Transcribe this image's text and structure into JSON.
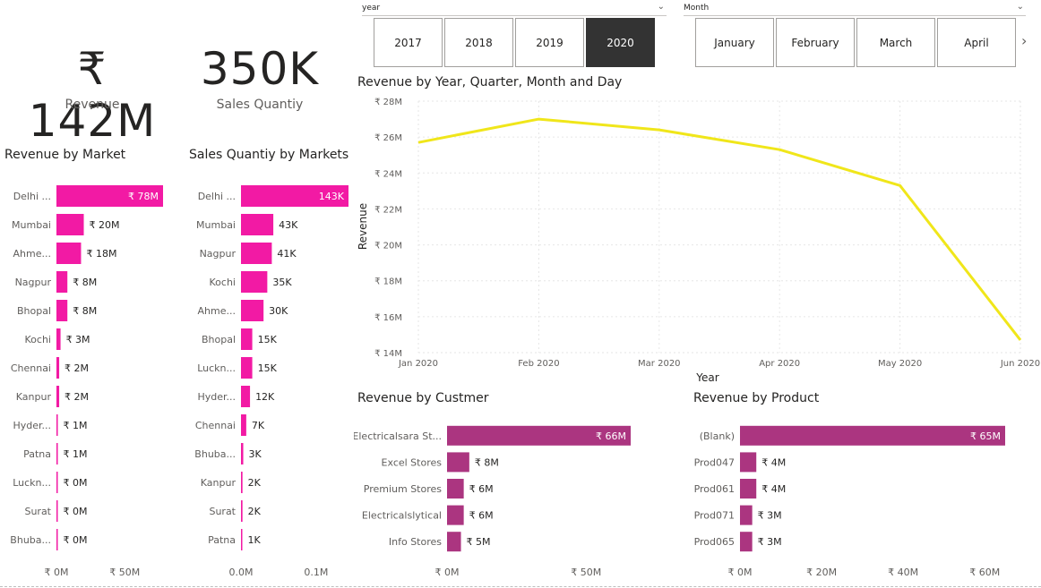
{
  "kpis": [
    {
      "value": "₹ 142M",
      "label": "Revenue"
    },
    {
      "value": "350K",
      "label": "Sales Quantiy"
    }
  ],
  "slicers": {
    "year": {
      "header": "year",
      "options": [
        "2017",
        "2018",
        "2019",
        "2020"
      ],
      "selected": "2020"
    },
    "month": {
      "header": "Month",
      "options": [
        "January",
        "February",
        "March",
        "April"
      ],
      "next_icon": "chevron-right-icon"
    }
  },
  "colors": {
    "market_bar": "#f21aa4",
    "customer_bar": "#ab3580",
    "line": "#f0e61a",
    "label_inside": "#ffffff",
    "axis_text": "#605e5c"
  },
  "chart_data": [
    {
      "type": "bar",
      "orientation": "horizontal",
      "title": "Revenue by Market",
      "categories": [
        "Delhi ...",
        "Mumbai",
        "Ahme...",
        "Nagpur",
        "Bhopal",
        "Kochi",
        "Chennai",
        "Kanpur",
        "Hyder...",
        "Patna",
        "Luckn...",
        "Surat",
        "Bhuba..."
      ],
      "values": [
        78,
        20,
        18,
        8,
        8,
        3,
        2,
        2,
        1,
        1,
        0,
        0,
        0
      ],
      "data_labels": [
        "₹ 78M",
        "₹ 20M",
        "₹ 18M",
        "₹ 8M",
        "₹ 8M",
        "₹ 3M",
        "₹ 2M",
        "₹ 2M",
        "₹ 1M",
        "₹ 1M",
        "₹ 0M",
        "₹ 0M",
        "₹ 0M"
      ],
      "unit": "M",
      "xlim": [
        0,
        78
      ],
      "xticks": [
        0,
        50
      ],
      "xtick_labels": [
        "₹ 0M",
        "₹ 50M"
      ]
    },
    {
      "type": "bar",
      "orientation": "horizontal",
      "title": "Sales Quantiy by Markets",
      "categories": [
        "Delhi ...",
        "Mumbai",
        "Nagpur",
        "Kochi",
        "Ahme...",
        "Bhopal",
        "Luckn...",
        "Hyder...",
        "Chennai",
        "Bhuba...",
        "Kanpur",
        "Surat",
        "Patna"
      ],
      "values": [
        143,
        43,
        41,
        35,
        30,
        15,
        15,
        12,
        7,
        3,
        2,
        2,
        1
      ],
      "data_labels": [
        "143K",
        "43K",
        "41K",
        "35K",
        "30K",
        "15K",
        "15K",
        "12K",
        "7K",
        "3K",
        "2K",
        "2K",
        "1K"
      ],
      "unit": "K",
      "xlim": [
        0,
        143
      ],
      "xticks": [
        0,
        100
      ],
      "xtick_labels": [
        "0.0M",
        "0.1M"
      ]
    },
    {
      "type": "line",
      "title": "Revenue by Year, Quarter, Month and Day",
      "x": [
        "Jan 2020",
        "Feb 2020",
        "Mar 2020",
        "Apr 2020",
        "May 2020",
        "Jun 2020"
      ],
      "series": [
        {
          "values": [
            25.7,
            27.0,
            26.4,
            25.3,
            23.3,
            14.7
          ]
        }
      ],
      "xlabel": "Year",
      "ylabel": "Revenue",
      "ylim": [
        14,
        28
      ],
      "yticks": [
        14,
        16,
        18,
        20,
        22,
        24,
        26,
        28
      ],
      "ytick_labels": [
        "₹ 14M",
        "₹ 16M",
        "₹ 18M",
        "₹ 20M",
        "₹ 22M",
        "₹ 24M",
        "₹ 26M",
        "₹ 28M"
      ],
      "grid": true
    },
    {
      "type": "bar",
      "orientation": "horizontal",
      "title": "Revenue by Custmer",
      "categories": [
        "Electricalsara St...",
        "Excel Stores",
        "Premium Stores",
        "Electricalslytical",
        "Info Stores"
      ],
      "values": [
        66,
        8,
        6,
        6,
        5
      ],
      "data_labels": [
        "₹ 66M",
        "₹ 8M",
        "₹ 6M",
        "₹ 6M",
        "₹ 5M"
      ],
      "xlim": [
        0,
        66
      ],
      "xticks": [
        0,
        50
      ],
      "xtick_labels": [
        "₹ 0M",
        "₹ 50M"
      ]
    },
    {
      "type": "bar",
      "orientation": "horizontal",
      "title": "Revenue by Product",
      "categories": [
        "(Blank)",
        "Prod047",
        "Prod061",
        "Prod071",
        "Prod065"
      ],
      "values": [
        65,
        4,
        4,
        3,
        3
      ],
      "data_labels": [
        "₹ 65M",
        "₹ 4M",
        "₹ 4M",
        "₹ 3M",
        "₹ 3M"
      ],
      "xlim": [
        0,
        65
      ],
      "xticks": [
        0,
        20,
        40,
        60
      ],
      "xtick_labels": [
        "₹ 0M",
        "₹ 20M",
        "₹ 40M",
        "₹ 60M"
      ]
    }
  ]
}
